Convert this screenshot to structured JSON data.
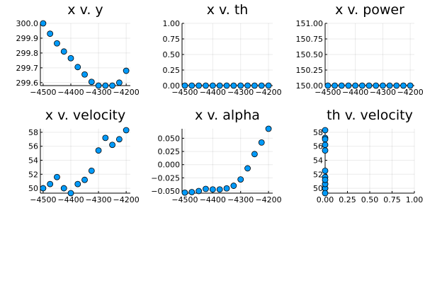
{
  "chart_data": [
    {
      "type": "scatter",
      "title": "x v. y",
      "xlabel": "",
      "ylabel": "",
      "xlim": [
        -4510,
        -4185
      ],
      "ylim": [
        299.58,
        300.0
      ],
      "xticks": [
        -4500,
        -4400,
        -4300,
        -4200
      ],
      "xtick_labels": [
        "−4500",
        "−4400",
        "−4300",
        "−4200"
      ],
      "yticks": [
        299.6,
        299.7,
        299.8,
        299.9,
        300.0
      ],
      "ytick_labels": [
        "299.6",
        "299.7",
        "299.8",
        "299.9",
        "300.0"
      ],
      "grid": true,
      "legend": "none",
      "color": "#009af9",
      "x": [
        -4500,
        -4475,
        -4450,
        -4425,
        -4400,
        -4375,
        -4350,
        -4325,
        -4300,
        -4275,
        -4250,
        -4225,
        -4200
      ],
      "y": [
        300.0,
        299.93,
        299.865,
        299.81,
        299.765,
        299.705,
        299.655,
        299.605,
        299.58,
        299.58,
        299.58,
        299.6,
        299.68
      ]
    },
    {
      "type": "scatter",
      "title": "x v. th",
      "xlabel": "",
      "ylabel": "",
      "xlim": [
        -4510,
        -4185
      ],
      "ylim": [
        0,
        1.0
      ],
      "xticks": [
        -4500,
        -4400,
        -4300,
        -4200
      ],
      "xtick_labels": [
        "−4500",
        "−4400",
        "−4300",
        "−4200"
      ],
      "yticks": [
        0,
        0.25,
        0.5,
        0.75,
        1.0
      ],
      "ytick_labels": [
        "0.00",
        "0.25",
        "0.50",
        "0.75",
        "1.00"
      ],
      "grid": true,
      "legend": "none",
      "color": "#009af9",
      "x": [
        -4500,
        -4475,
        -4450,
        -4425,
        -4400,
        -4375,
        -4350,
        -4325,
        -4300,
        -4275,
        -4250,
        -4225,
        -4200
      ],
      "y": [
        0,
        0,
        0,
        0,
        0,
        0,
        0,
        0,
        0,
        0,
        0,
        0,
        0
      ]
    },
    {
      "type": "scatter",
      "title": "x v. power",
      "xlabel": "",
      "ylabel": "",
      "xlim": [
        -4510,
        -4185
      ],
      "ylim": [
        150.0,
        151.0
      ],
      "xticks": [
        -4500,
        -4400,
        -4300,
        -4200
      ],
      "xtick_labels": [
        "−4500",
        "−4400",
        "−4300",
        "−4200"
      ],
      "yticks": [
        150.0,
        150.25,
        150.5,
        150.75,
        151.0
      ],
      "ytick_labels": [
        "150.00",
        "150.25",
        "150.50",
        "150.75",
        "151.00"
      ],
      "grid": true,
      "legend": "none",
      "color": "#009af9",
      "x": [
        -4500,
        -4475,
        -4450,
        -4425,
        -4400,
        -4375,
        -4350,
        -4325,
        -4300,
        -4275,
        -4250,
        -4225,
        -4200
      ],
      "y": [
        150,
        150,
        150,
        150,
        150,
        150,
        150,
        150,
        150,
        150,
        150,
        150,
        150
      ]
    },
    {
      "type": "scatter",
      "title": "x v. velocity",
      "xlabel": "",
      "ylabel": "",
      "xlim": [
        -4510,
        -4185
      ],
      "ylim": [
        49.3,
        58.5
      ],
      "xticks": [
        -4500,
        -4400,
        -4300,
        -4200
      ],
      "xtick_labels": [
        "−4500",
        "−4400",
        "−4300",
        "−4200"
      ],
      "yticks": [
        50,
        52,
        54,
        56,
        58
      ],
      "ytick_labels": [
        "50",
        "52",
        "54",
        "56",
        "58"
      ],
      "grid": true,
      "legend": "none",
      "color": "#009af9",
      "x": [
        -4500,
        -4475,
        -4450,
        -4425,
        -4400,
        -4375,
        -4350,
        -4325,
        -4300,
        -4275,
        -4250,
        -4225,
        -4200
      ],
      "y": [
        50.0,
        50.6,
        51.6,
        50.0,
        49.3,
        50.6,
        51.2,
        52.5,
        55.4,
        57.2,
        56.2,
        57.0,
        58.3
      ]
    },
    {
      "type": "scatter",
      "title": "x v. alpha",
      "xlabel": "",
      "ylabel": "",
      "xlim": [
        -4510,
        -4185
      ],
      "ylim": [
        -0.054,
        0.068
      ],
      "xticks": [
        -4500,
        -4400,
        -4300,
        -4200
      ],
      "xtick_labels": [
        "−4500",
        "−4400",
        "−4300",
        "−4200"
      ],
      "yticks": [
        -0.05,
        -0.025,
        0,
        0.025,
        0.05
      ],
      "ytick_labels": [
        "−0.050",
        "−0.025",
        "0.000",
        "0.025",
        "0.050"
      ],
      "grid": true,
      "legend": "none",
      "color": "#009af9",
      "x": [
        -4500,
        -4475,
        -4450,
        -4425,
        -4400,
        -4375,
        -4350,
        -4325,
        -4300,
        -4275,
        -4250,
        -4225,
        -4200
      ],
      "y": [
        -0.053,
        -0.052,
        -0.05,
        -0.046,
        -0.047,
        -0.047,
        -0.045,
        -0.04,
        -0.028,
        -0.007,
        0.02,
        0.042,
        0.068
      ]
    },
    {
      "type": "scatter",
      "title": "th v. velocity",
      "xlabel": "",
      "ylabel": "",
      "xlim": [
        0,
        1.0
      ],
      "ylim": [
        49.3,
        58.5
      ],
      "xticks": [
        0,
        0.25,
        0.5,
        0.75,
        1.0
      ],
      "xtick_labels": [
        "0.00",
        "0.25",
        "0.50",
        "0.75",
        "1.00"
      ],
      "yticks": [
        50,
        52,
        54,
        56,
        58
      ],
      "ytick_labels": [
        "50",
        "52",
        "54",
        "56",
        "58"
      ],
      "grid": true,
      "legend": "none",
      "color": "#009af9",
      "x": [
        0,
        0,
        0,
        0,
        0,
        0,
        0,
        0,
        0,
        0,
        0,
        0,
        0
      ],
      "y": [
        50.0,
        50.6,
        51.6,
        50.0,
        49.3,
        50.6,
        51.2,
        52.5,
        55.4,
        57.2,
        56.2,
        57.0,
        58.3
      ]
    }
  ]
}
